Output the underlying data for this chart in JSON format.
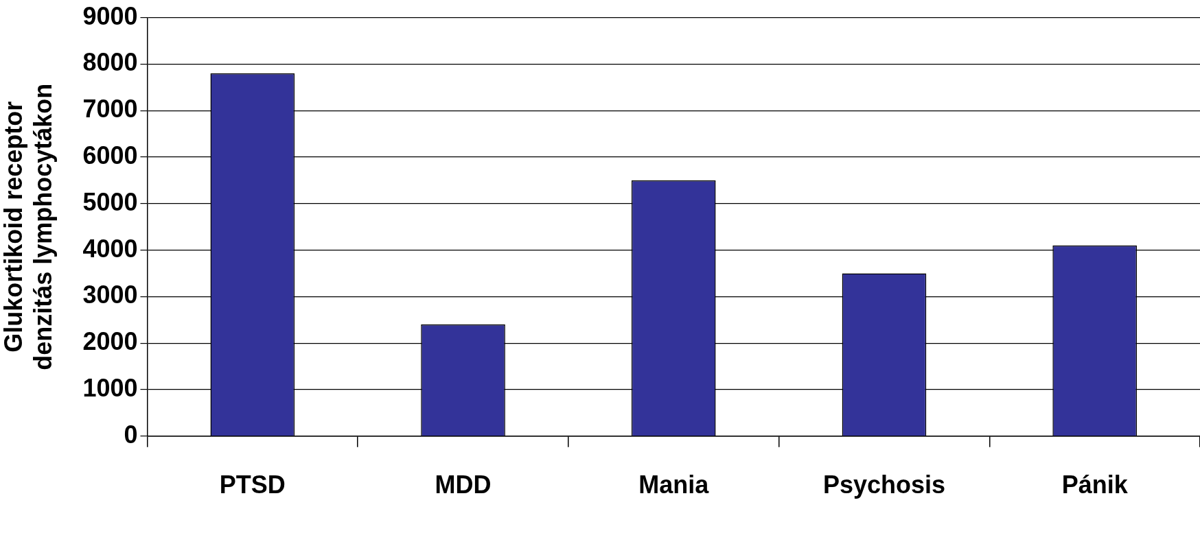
{
  "chart_data": {
    "type": "bar",
    "ylabel": "Glukortikoid receptor denzitás lymphocytákon",
    "categories": [
      "PTSD",
      "MDD",
      "Mania",
      "Psychosis",
      "Pánik"
    ],
    "values": [
      7800,
      2400,
      5500,
      3500,
      4100
    ],
    "color": "#333399",
    "ylim": [
      0,
      9000
    ],
    "yticks": [
      0,
      1000,
      2000,
      3000,
      4000,
      5000,
      6000,
      7000,
      8000,
      9000
    ],
    "grid": "y",
    "legend": false
  }
}
